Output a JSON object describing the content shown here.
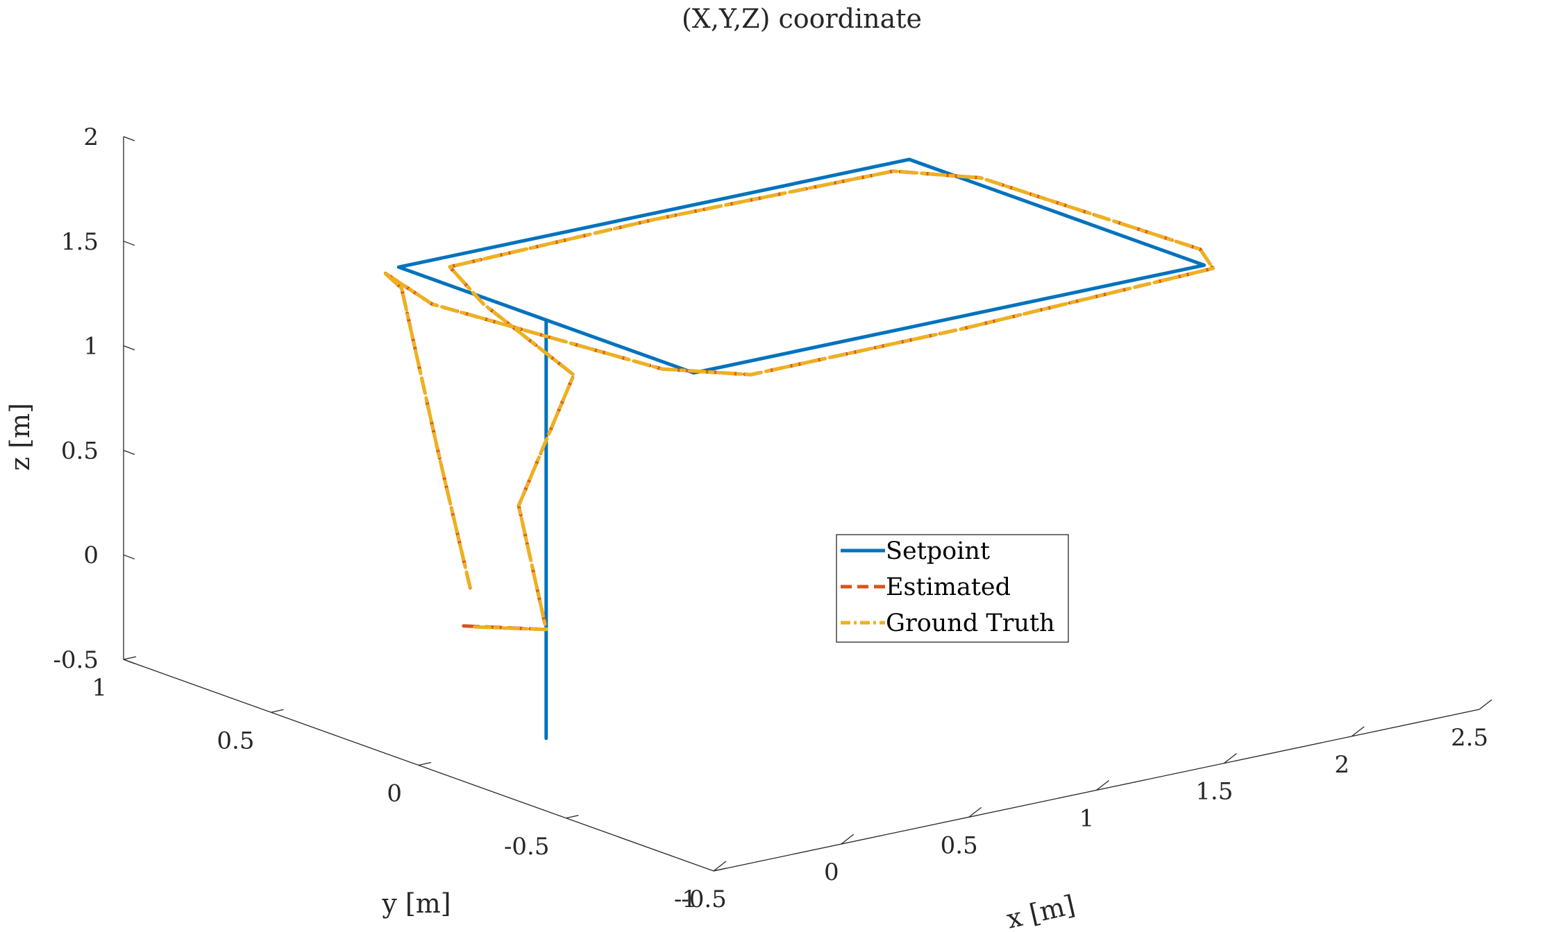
{
  "chart_data": {
    "type": "line",
    "projection": "3d",
    "title": "(X,Y,Z) coordinate",
    "xlabel": "x [m]",
    "ylabel": "y [m]",
    "zlabel": "z [m]",
    "xlim": [
      -0.5,
      2.5
    ],
    "ylim": [
      -1,
      1
    ],
    "zlim": [
      -0.5,
      2
    ],
    "xticks": [
      -0.5,
      0,
      0.5,
      1,
      1.5,
      2,
      2.5
    ],
    "xtick_labels": [
      "-0.5",
      "0",
      "0.5",
      "1",
      "1.5",
      "2",
      "2.5"
    ],
    "yticks": [
      -1,
      -0.5,
      0,
      0.5,
      1
    ],
    "ytick_labels": [
      "-1",
      "-0.5",
      "0",
      "0.5",
      "1"
    ],
    "zticks": [
      -0.5,
      0,
      0.5,
      1,
      1.5,
      2
    ],
    "ztick_labels": [
      "-0.5",
      "0",
      "0.5",
      "1",
      "1.5",
      "2"
    ],
    "grid": false,
    "legend_position": "center-right",
    "series": [
      {
        "name": "Setpoint",
        "color": "#0072BD",
        "style": "solid",
        "points": [
          [
            0,
            0,
            -0.5
          ],
          [
            0,
            0,
            0.5
          ],
          [
            0,
            0,
            1.5
          ],
          [
            0,
            0.5,
            1.5
          ],
          [
            2,
            0.5,
            1.5
          ],
          [
            2,
            -0.5,
            1.5
          ],
          [
            0,
            -0.5,
            1.5
          ],
          [
            0,
            0.5,
            1.5
          ]
        ]
      },
      {
        "name": "Estimated",
        "color": "#D95319",
        "style": "dashed",
        "points": [
          [
            -0.15,
            0.15,
            0.0
          ],
          [
            0,
            0,
            0.02
          ],
          [
            -0.05,
            0.05,
            0.6
          ],
          [
            0.05,
            -0.05,
            1.25
          ],
          [
            0.1,
            0.3,
            1.4
          ],
          [
            0.2,
            0.5,
            1.45
          ],
          [
            1.0,
            0.5,
            1.47
          ],
          [
            1.88,
            0.45,
            1.5
          ],
          [
            2.05,
            0.3,
            1.5
          ],
          [
            2.1,
            -0.4,
            1.5
          ],
          [
            2.0,
            -0.53,
            1.5
          ],
          [
            1.0,
            -0.55,
            1.48
          ],
          [
            0.2,
            -0.52,
            1.45
          ],
          [
            0.05,
            -0.35,
            1.43
          ],
          [
            -0.1,
            0.3,
            1.45
          ],
          [
            0.0,
            0.55,
            1.45
          ],
          [
            0.15,
            0.62,
            1.3
          ],
          [
            0.1,
            0.45,
            0.6
          ],
          [
            0.05,
            0.3,
            0.05
          ]
        ]
      },
      {
        "name": "Ground Truth",
        "color": "#EDB120",
        "style": "dashdot",
        "points": [
          [
            -0.13,
            0.13,
            0.0
          ],
          [
            0,
            0,
            0.02
          ],
          [
            -0.05,
            0.05,
            0.6
          ],
          [
            0.05,
            -0.05,
            1.25
          ],
          [
            0.1,
            0.3,
            1.4
          ],
          [
            0.2,
            0.5,
            1.45
          ],
          [
            1.0,
            0.5,
            1.47
          ],
          [
            1.88,
            0.45,
            1.5
          ],
          [
            2.05,
            0.3,
            1.5
          ],
          [
            2.1,
            -0.4,
            1.5
          ],
          [
            2.0,
            -0.53,
            1.5
          ],
          [
            1.0,
            -0.55,
            1.48
          ],
          [
            0.2,
            -0.52,
            1.45
          ],
          [
            0.05,
            -0.35,
            1.43
          ],
          [
            -0.1,
            0.3,
            1.45
          ],
          [
            0.0,
            0.55,
            1.45
          ],
          [
            0.15,
            0.62,
            1.3
          ],
          [
            0.1,
            0.45,
            0.6
          ],
          [
            0.05,
            0.3,
            0.05
          ]
        ]
      }
    ]
  }
}
